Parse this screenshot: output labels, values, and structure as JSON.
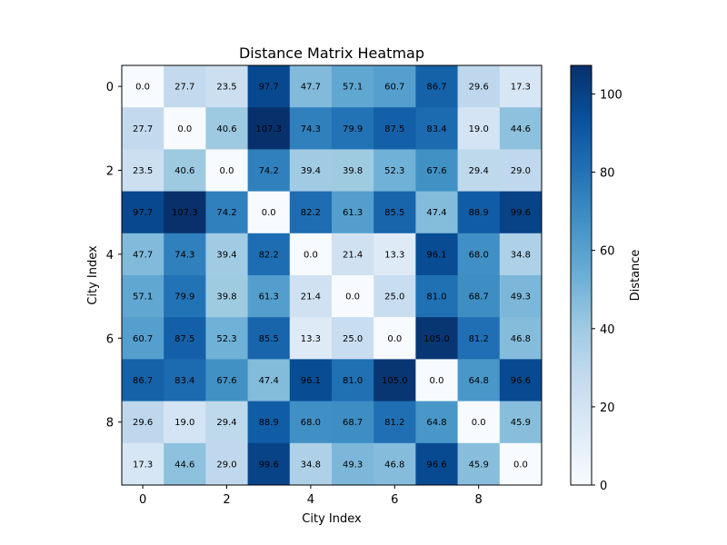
{
  "chart_data": {
    "type": "heatmap",
    "title": "Distance Matrix Heatmap",
    "xlabel": "City Index",
    "ylabel": "City Index",
    "x_ticks": [
      "0",
      "2",
      "4",
      "6",
      "8"
    ],
    "y_ticks": [
      "0",
      "2",
      "4",
      "6",
      "8"
    ],
    "colormap": "Blues",
    "colorbar": {
      "label": "Distance",
      "range": [
        0,
        107.3
      ],
      "ticks": [
        "0",
        "20",
        "40",
        "60",
        "80",
        "100"
      ]
    },
    "matrix": [
      [
        0.0,
        27.7,
        23.5,
        97.7,
        47.7,
        57.1,
        60.7,
        86.7,
        29.6,
        17.3
      ],
      [
        27.7,
        0.0,
        40.6,
        107.3,
        74.3,
        79.9,
        87.5,
        83.4,
        19.0,
        44.6
      ],
      [
        23.5,
        40.6,
        0.0,
        74.2,
        39.4,
        39.8,
        52.3,
        67.6,
        29.4,
        29.0
      ],
      [
        97.7,
        107.3,
        74.2,
        0.0,
        82.2,
        61.3,
        85.5,
        47.4,
        88.9,
        99.6
      ],
      [
        47.7,
        74.3,
        39.4,
        82.2,
        0.0,
        21.4,
        13.3,
        96.1,
        68.0,
        34.8
      ],
      [
        57.1,
        79.9,
        39.8,
        61.3,
        21.4,
        0.0,
        25.0,
        81.0,
        68.7,
        49.3
      ],
      [
        60.7,
        87.5,
        52.3,
        85.5,
        13.3,
        25.0,
        0.0,
        105.0,
        81.2,
        46.8
      ],
      [
        86.7,
        83.4,
        67.6,
        47.4,
        96.1,
        81.0,
        105.0,
        0.0,
        64.8,
        96.6
      ],
      [
        29.6,
        19.0,
        29.4,
        88.9,
        68.0,
        68.7,
        81.2,
        64.8,
        0.0,
        45.9
      ],
      [
        17.3,
        44.6,
        29.0,
        99.6,
        34.8,
        49.3,
        46.8,
        96.6,
        45.9,
        0.0
      ]
    ]
  }
}
